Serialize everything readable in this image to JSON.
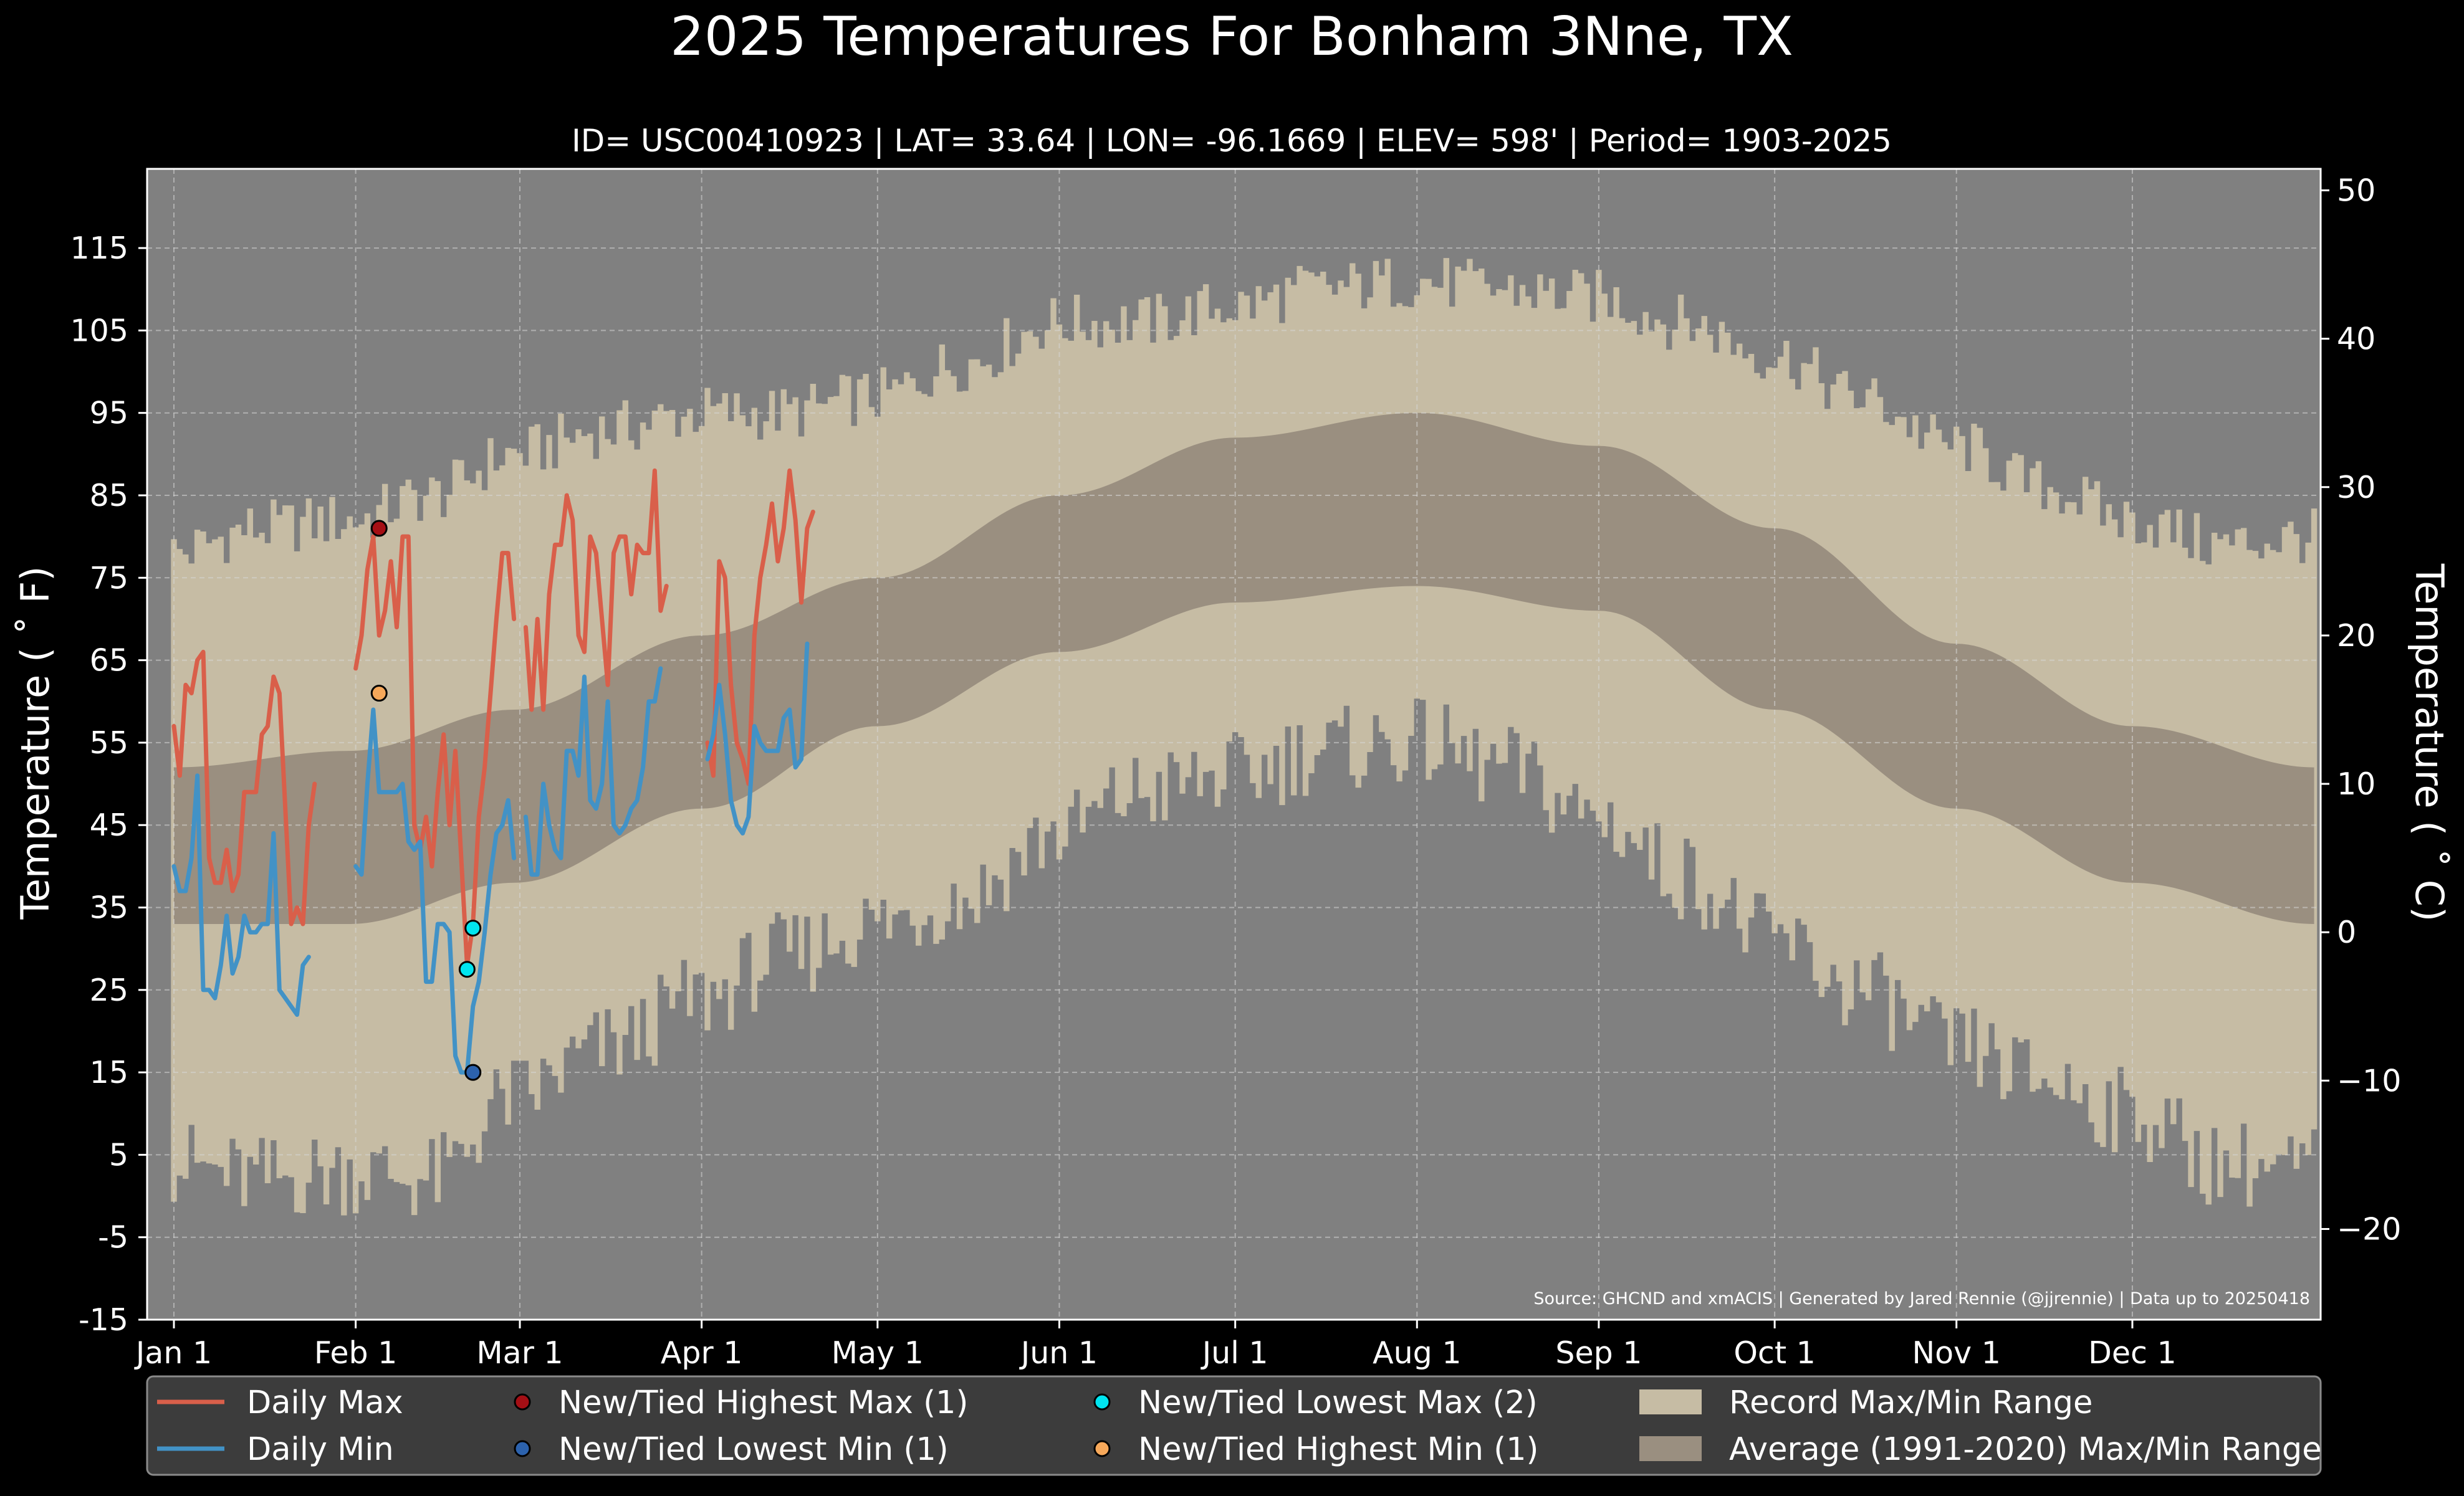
{
  "chart_data": {
    "type": "line",
    "title": "2025 Temperatures For Bonham 3Nne, TX",
    "subtitle": "ID= USC00410923 | LAT= 33.64 | LON= -96.1669 | ELEV= 598' | Period= 1903-2025",
    "ylabel": "Temperature ($^\\circ$F)",
    "ylabel_display": "Temperature ( ˚ F)",
    "y2label_display": "Temperature ( ˚ C)",
    "source": "Source: GHCND and xmACIS | Generated by Jared Rennie (@jjrennie) | Data up to 20250418",
    "ylim": [
      -15,
      124
    ],
    "y_ticks": [
      "115",
      "105",
      "95",
      "85",
      "75",
      "65",
      "55",
      "45",
      "35",
      "25",
      "15",
      "5",
      "-5",
      "-15"
    ],
    "y2_ticks": [
      "50",
      "40",
      "30",
      "20",
      "10",
      "0",
      "−10",
      "−20"
    ],
    "x_ticks": [
      "Jan 1",
      "Feb 1",
      "Mar 1",
      "Apr 1",
      "May 1",
      "Jun 1",
      "Jul 1",
      "Aug 1",
      "Sep 1",
      "Oct 1",
      "Nov 1",
      "Dec 1"
    ],
    "x_tick_days": [
      1,
      32,
      60,
      91,
      121,
      152,
      182,
      213,
      244,
      274,
      305,
      335
    ],
    "grid": true,
    "legend_position": "bottom",
    "colors": {
      "background": "#000000",
      "plot": "#808080",
      "record_range": "#c6bca4",
      "average_range": "#9a8f80",
      "daily_max": "#d95f4a",
      "daily_min": "#4292c6",
      "new_high_max": "#a50f15",
      "new_low_min": "#2c62ad",
      "new_low_max": "#00e5f0",
      "new_high_min": "#f6a85a"
    },
    "series": [
      {
        "name": "Daily Max",
        "start_day": 1,
        "values": [
          57,
          51,
          62,
          61,
          65,
          66,
          41,
          38,
          38,
          42,
          37,
          39,
          49,
          49,
          49,
          56,
          57,
          63,
          61,
          47,
          33,
          35,
          33,
          45,
          50,
          null,
          null,
          null,
          null,
          null,
          null,
          64,
          68,
          76,
          80,
          68,
          71,
          77,
          69,
          80,
          80,
          45,
          42,
          46,
          40,
          49,
          56,
          45,
          54,
          41,
          28,
          33,
          46,
          52,
          61,
          70,
          78,
          78,
          70,
          null,
          69,
          59,
          70,
          59,
          73,
          79,
          79,
          85,
          82,
          68,
          66,
          80,
          78,
          70,
          62,
          78,
          80,
          80,
          73,
          79,
          78,
          78,
          88,
          71,
          74,
          null,
          null,
          null,
          null,
          null,
          null,
          55,
          51,
          77,
          75,
          62,
          55,
          53,
          50,
          68,
          75,
          79,
          84,
          77,
          81,
          88,
          82,
          72,
          81,
          83
        ]
      },
      {
        "name": "Daily Min",
        "start_day": 1,
        "values": [
          40,
          37,
          37,
          41,
          51,
          25,
          25,
          24,
          28,
          34,
          27,
          29,
          34,
          32,
          32,
          33,
          33,
          44,
          25,
          24,
          23,
          22,
          28,
          29,
          null,
          null,
          null,
          null,
          null,
          null,
          null,
          40,
          39,
          50,
          59,
          49,
          49,
          49,
          49,
          50,
          43,
          42,
          43,
          26,
          26,
          33,
          33,
          32,
          17,
          15,
          15,
          23,
          26,
          32,
          39,
          44,
          45,
          48,
          41,
          null,
          46,
          39,
          39,
          50,
          45,
          42,
          41,
          54,
          54,
          51,
          63,
          48,
          47,
          50,
          60,
          45,
          44,
          45,
          47,
          48,
          52,
          60,
          60,
          64,
          null,
          null,
          null,
          null,
          null,
          null,
          null,
          53,
          56,
          62,
          56,
          48,
          45,
          44,
          46,
          57,
          55,
          54,
          54,
          54,
          58,
          59,
          52,
          53,
          67
        ]
      }
    ],
    "record_range": {
      "name": "Record Max/Min Range",
      "max_knots": [
        [
          1,
          78
        ],
        [
          15,
          81
        ],
        [
          31,
          82
        ],
        [
          45,
          85
        ],
        [
          59,
          90
        ],
        [
          75,
          93
        ],
        [
          91,
          95
        ],
        [
          105,
          95
        ],
        [
          121,
          97
        ],
        [
          135,
          101
        ],
        [
          152,
          106
        ],
        [
          166,
          106
        ],
        [
          182,
          108
        ],
        [
          196,
          110
        ],
        [
          213,
          111
        ],
        [
          227,
          110
        ],
        [
          244,
          109
        ],
        [
          258,
          106
        ],
        [
          274,
          102
        ],
        [
          288,
          97
        ],
        [
          305,
          91
        ],
        [
          320,
          86
        ],
        [
          335,
          82
        ],
        [
          350,
          79
        ],
        [
          366,
          80
        ]
      ],
      "min_knots": [
        [
          1,
          4
        ],
        [
          15,
          2
        ],
        [
          31,
          3
        ],
        [
          45,
          2
        ],
        [
          59,
          12
        ],
        [
          75,
          18
        ],
        [
          91,
          24
        ],
        [
          105,
          29
        ],
        [
          121,
          33
        ],
        [
          135,
          36
        ],
        [
          152,
          44
        ],
        [
          166,
          49
        ],
        [
          182,
          51
        ],
        [
          196,
          54
        ],
        [
          213,
          55
        ],
        [
          227,
          52
        ],
        [
          244,
          46
        ],
        [
          258,
          39
        ],
        [
          274,
          31
        ],
        [
          288,
          25
        ],
        [
          305,
          18
        ],
        [
          320,
          14
        ],
        [
          335,
          10
        ],
        [
          350,
          4
        ],
        [
          366,
          3
        ]
      ]
    },
    "average_range": {
      "name": "Average (1991-2020) Max/Min Range",
      "max_knots": [
        [
          1,
          52
        ],
        [
          31,
          54
        ],
        [
          59,
          59
        ],
        [
          91,
          68
        ],
        [
          121,
          75
        ],
        [
          152,
          85
        ],
        [
          182,
          92
        ],
        [
          213,
          95
        ],
        [
          244,
          91
        ],
        [
          274,
          81
        ],
        [
          305,
          67
        ],
        [
          335,
          57
        ],
        [
          366,
          52
        ]
      ],
      "min_knots": [
        [
          1,
          33
        ],
        [
          31,
          33
        ],
        [
          59,
          38
        ],
        [
          91,
          47
        ],
        [
          121,
          57
        ],
        [
          152,
          66
        ],
        [
          182,
          72
        ],
        [
          213,
          74
        ],
        [
          244,
          71
        ],
        [
          274,
          59
        ],
        [
          305,
          47
        ],
        [
          335,
          38
        ],
        [
          366,
          33
        ]
      ]
    },
    "markers": [
      {
        "name": "New/Tied Highest Max (1)",
        "day": 36,
        "value": 81,
        "color_key": "new_high_max"
      },
      {
        "name": "New/Tied Lowest Min (1)",
        "day": 52,
        "value": 15,
        "color_key": "new_low_min"
      },
      {
        "name": "New/Tied Lowest Max (2)",
        "day": 51,
        "value": 27.5,
        "color_key": "new_low_max"
      },
      {
        "name": "New/Tied Lowest Max (2)",
        "day": 52,
        "value": 32.5,
        "color_key": "new_low_max"
      },
      {
        "name": "New/Tied Highest Min (1)",
        "day": 36,
        "value": 61,
        "color_key": "new_high_min"
      }
    ]
  },
  "legend": {
    "items": [
      {
        "label": "Daily Max",
        "kind": "line",
        "color_key": "daily_max"
      },
      {
        "label": "New/Tied Highest Max (1)",
        "kind": "dot",
        "color_key": "new_high_max"
      },
      {
        "label": "New/Tied Lowest Max (2)",
        "kind": "dot",
        "color_key": "new_low_max"
      },
      {
        "label": "Record Max/Min Range",
        "kind": "patch",
        "color_key": "record_range"
      },
      {
        "label": "Daily Min",
        "kind": "line",
        "color_key": "daily_min"
      },
      {
        "label": "New/Tied Lowest Min (1)",
        "kind": "dot",
        "color_key": "new_low_min"
      },
      {
        "label": "New/Tied Highest Min (1)",
        "kind": "dot",
        "color_key": "new_high_min"
      },
      {
        "label": "Average (1991-2020) Max/Min Range",
        "kind": "patch",
        "color_key": "average_range"
      }
    ]
  }
}
